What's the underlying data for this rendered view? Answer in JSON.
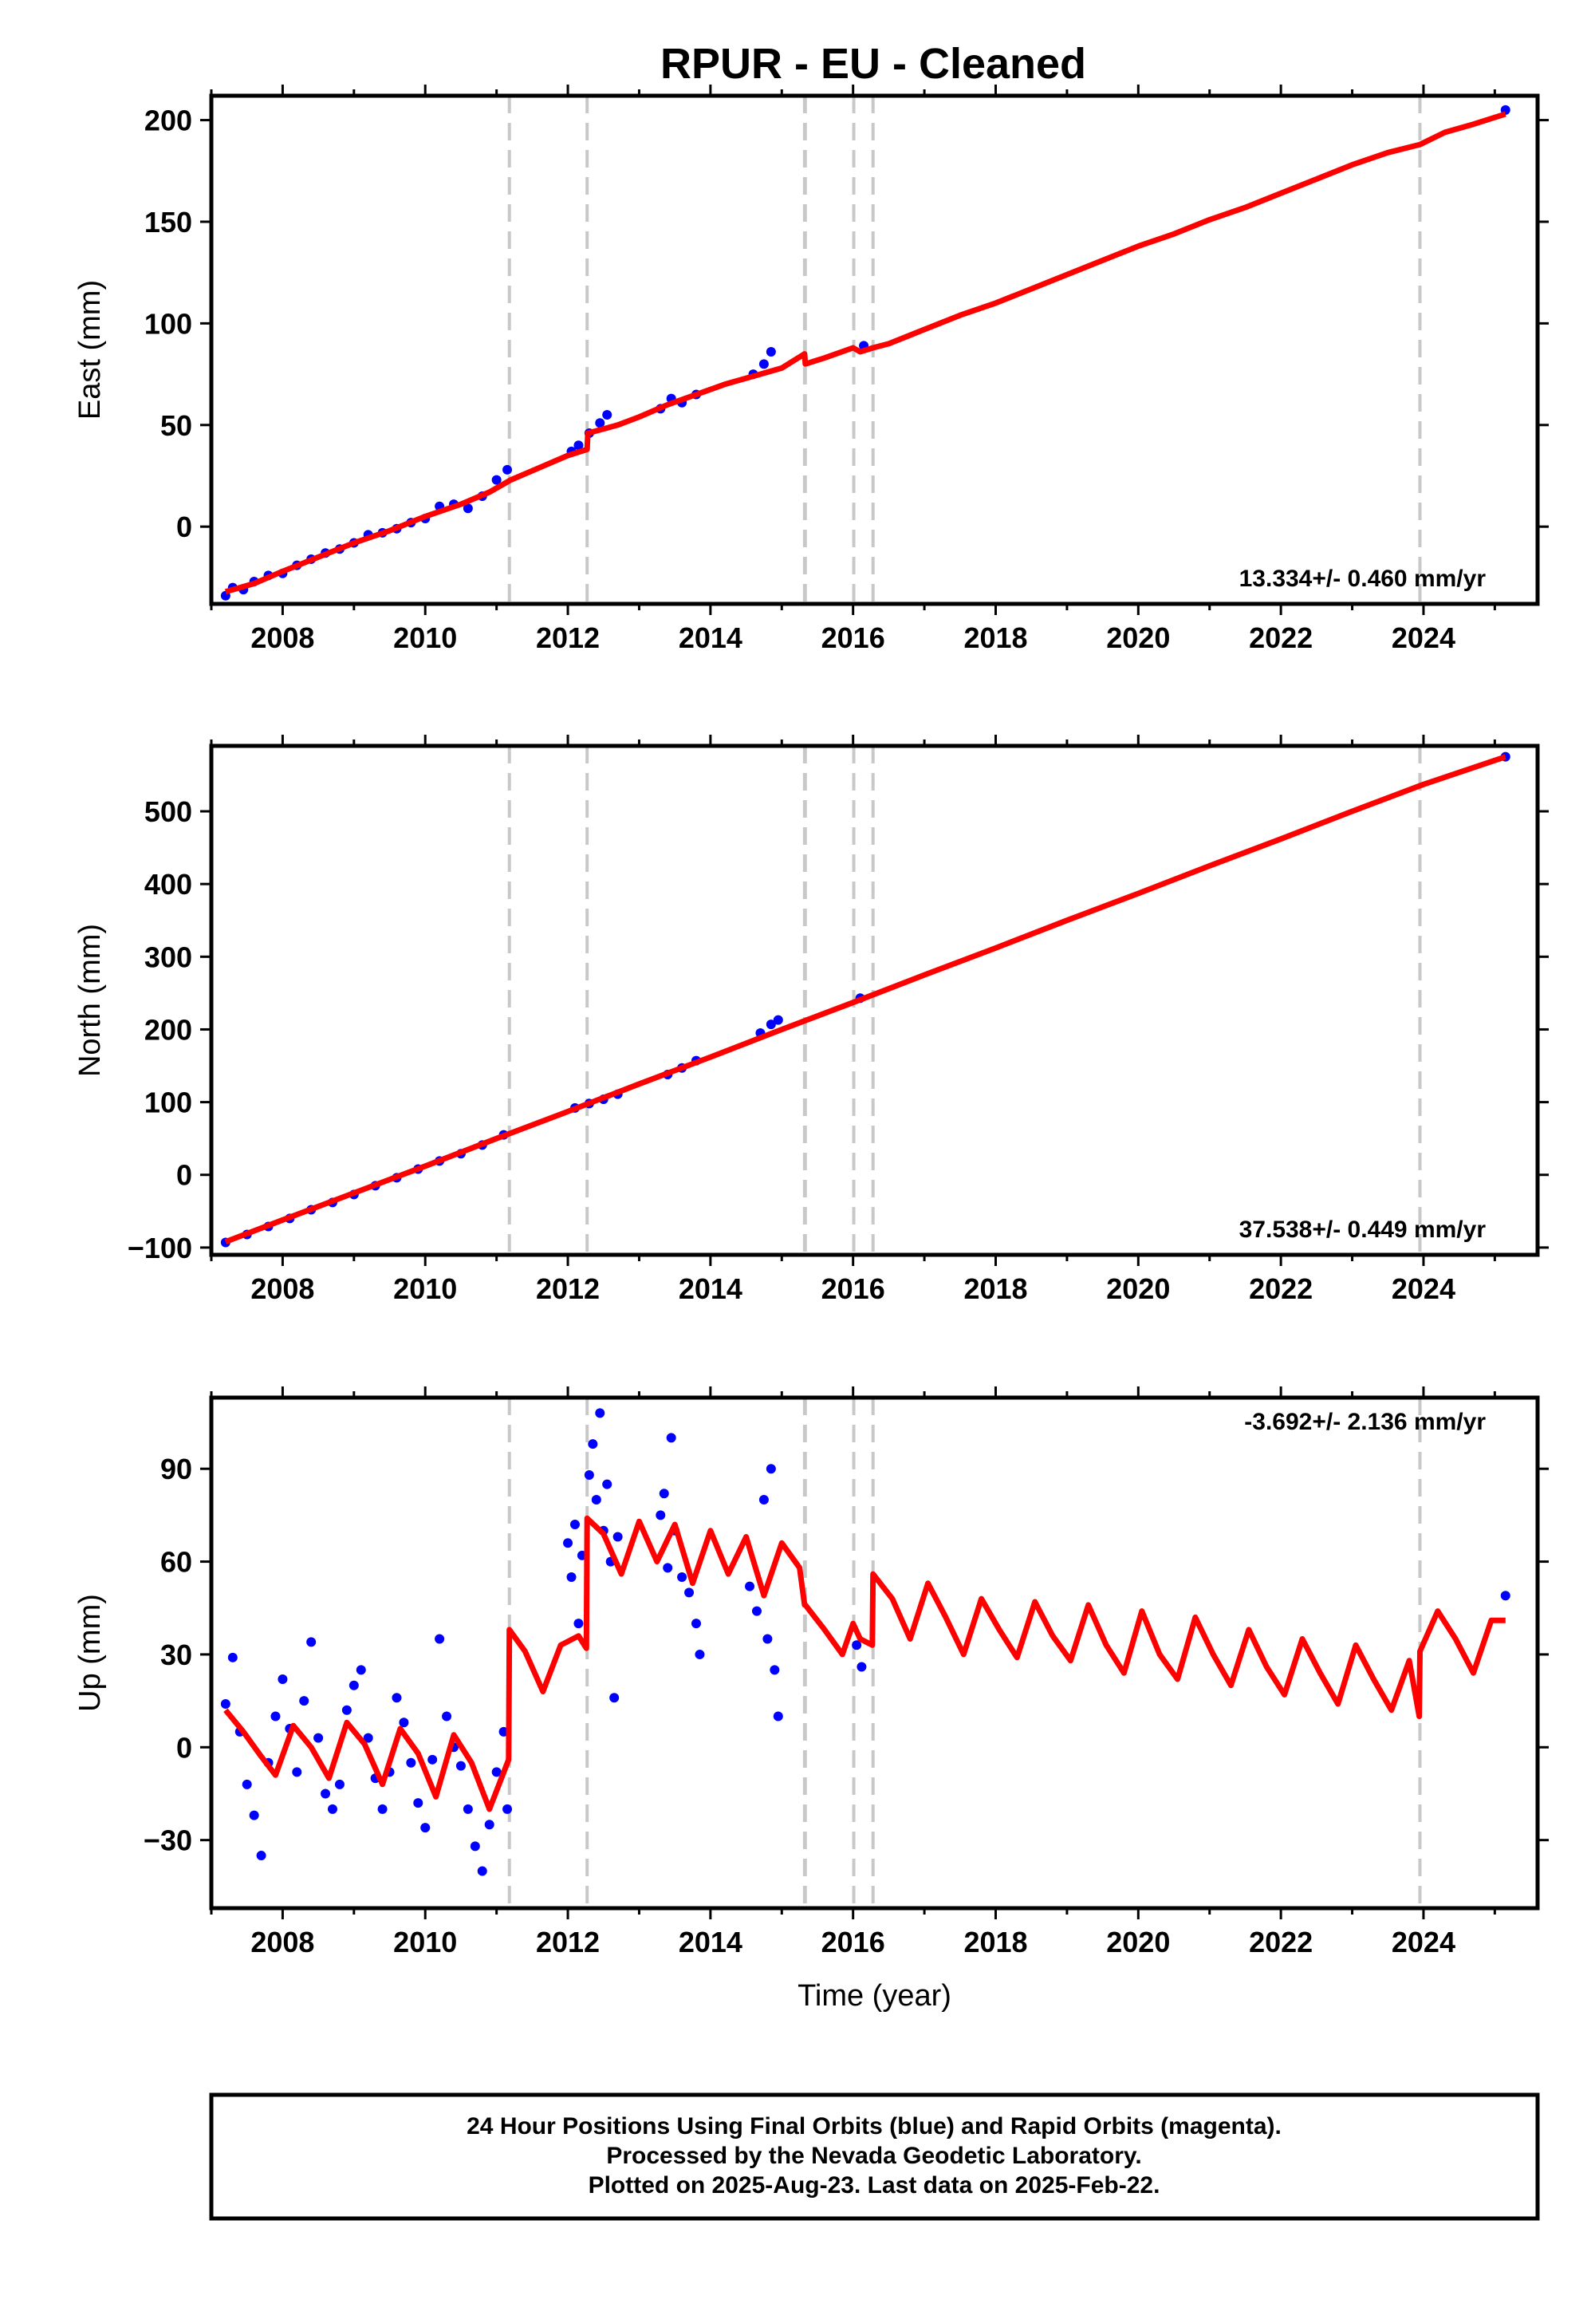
{
  "title": "RPUR  - EU - Cleaned",
  "footer": {
    "line1": "24 Hour Positions Using Final Orbits (blue) and Rapid Orbits (magenta).",
    "line2": "Processed by the Nevada Geodetic Laboratory.",
    "line3": "Plotted on 2025-Aug-23. Last data on 2025-Feb-22."
  },
  "colors": {
    "data_points": "#0000ff",
    "model": "#ff0000",
    "event_lines": "#c8c8c8"
  },
  "chart_data": [
    {
      "type": "scatter",
      "xlabel": "",
      "ylabel": "East (mm)",
      "xlim": [
        2007.0,
        2025.6
      ],
      "ylim": [
        -38,
        212
      ],
      "xticks": [
        2008,
        2010,
        2012,
        2014,
        2016,
        2018,
        2020,
        2022,
        2024
      ],
      "yticks": [
        0,
        50,
        100,
        150,
        200
      ],
      "rate": "13.334+/- 0.460 mm/yr",
      "event_lines": [
        2011.18,
        2012.27,
        2015.32,
        2015.33,
        2016.01,
        2016.28,
        2023.95
      ],
      "grid": false,
      "series": [
        {
          "x": [
            2007.2,
            2007.6,
            2008.0,
            2008.5,
            2009.0,
            2009.5,
            2010.0,
            2010.5,
            2010.9,
            2011.2,
            2011.6,
            2012.0,
            2012.27,
            2012.28,
            2012.7,
            2013.0,
            2013.4,
            2013.8,
            2014.2,
            2014.6,
            2015.0,
            2015.32,
            2015.33,
            2015.6,
            2016.0,
            2016.1,
            2016.28,
            2016.5,
            2017.0,
            2017.5,
            2018.0,
            2018.5,
            2019.0,
            2019.5,
            2020.0,
            2020.5,
            2021.0,
            2021.5,
            2022.0,
            2022.5,
            2023.0,
            2023.5,
            2023.95,
            2024.3,
            2024.7,
            2025.15
          ],
          "y": [
            -32,
            -28,
            -22,
            -15,
            -8,
            -2,
            5,
            11,
            17,
            23,
            29,
            35,
            38,
            46,
            50,
            54,
            60,
            65,
            70,
            74,
            78,
            85,
            80,
            83,
            88,
            86,
            88,
            90,
            97,
            104,
            110,
            117,
            124,
            131,
            138,
            144,
            151,
            157,
            164,
            171,
            178,
            184,
            188,
            194,
            198,
            203
          ]
        }
      ],
      "points": [
        {
          "x": 2007.2,
          "y": -34
        },
        {
          "x": 2007.3,
          "y": -30
        },
        {
          "x": 2007.45,
          "y": -31
        },
        {
          "x": 2007.6,
          "y": -27
        },
        {
          "x": 2007.8,
          "y": -24
        },
        {
          "x": 2008.0,
          "y": -23
        },
        {
          "x": 2008.2,
          "y": -19
        },
        {
          "x": 2008.4,
          "y": -16
        },
        {
          "x": 2008.6,
          "y": -13
        },
        {
          "x": 2008.8,
          "y": -11
        },
        {
          "x": 2009.0,
          "y": -8
        },
        {
          "x": 2009.2,
          "y": -4
        },
        {
          "x": 2009.4,
          "y": -3
        },
        {
          "x": 2009.6,
          "y": -1
        },
        {
          "x": 2009.8,
          "y": 2
        },
        {
          "x": 2010.0,
          "y": 4
        },
        {
          "x": 2010.2,
          "y": 10
        },
        {
          "x": 2010.4,
          "y": 11
        },
        {
          "x": 2010.6,
          "y": 9
        },
        {
          "x": 2010.8,
          "y": 15
        },
        {
          "x": 2011.0,
          "y": 23
        },
        {
          "x": 2011.15,
          "y": 28
        },
        {
          "x": 2012.05,
          "y": 37
        },
        {
          "x": 2012.15,
          "y": 40
        },
        {
          "x": 2012.3,
          "y": 46
        },
        {
          "x": 2012.45,
          "y": 51
        },
        {
          "x": 2012.55,
          "y": 55
        },
        {
          "x": 2013.3,
          "y": 58
        },
        {
          "x": 2013.45,
          "y": 63
        },
        {
          "x": 2013.6,
          "y": 61
        },
        {
          "x": 2013.8,
          "y": 65
        },
        {
          "x": 2014.6,
          "y": 75
        },
        {
          "x": 2014.75,
          "y": 80
        },
        {
          "x": 2014.85,
          "y": 86
        },
        {
          "x": 2016.15,
          "y": 89
        },
        {
          "x": 2025.15,
          "y": 205
        }
      ]
    },
    {
      "type": "scatter",
      "xlabel": "",
      "ylabel": "North (mm)",
      "xlim": [
        2007.0,
        2025.6
      ],
      "ylim": [
        -110,
        590
      ],
      "xticks": [
        2008,
        2010,
        2012,
        2014,
        2016,
        2018,
        2020,
        2022,
        2024
      ],
      "yticks": [
        -100,
        0,
        100,
        200,
        300,
        400,
        500
      ],
      "rate": "37.538+/- 0.449 mm/yr",
      "event_lines": [
        2011.18,
        2012.27,
        2015.32,
        2015.33,
        2016.01,
        2016.28,
        2023.95
      ],
      "grid": false,
      "series": [
        {
          "x": [
            2007.2,
            2008.0,
            2009.0,
            2010.0,
            2011.0,
            2012.0,
            2013.0,
            2014.0,
            2015.0,
            2016.0,
            2017.0,
            2018.0,
            2019.0,
            2020.0,
            2021.0,
            2022.0,
            2023.0,
            2024.0,
            2025.15
          ],
          "y": [
            -92,
            -62,
            -25,
            12,
            50,
            87,
            125,
            162,
            200,
            237,
            275,
            312,
            350,
            387,
            425,
            462,
            500,
            537,
            575
          ]
        }
      ],
      "points": [
        {
          "x": 2007.2,
          "y": -93
        },
        {
          "x": 2007.5,
          "y": -82
        },
        {
          "x": 2007.8,
          "y": -71
        },
        {
          "x": 2008.1,
          "y": -60
        },
        {
          "x": 2008.4,
          "y": -48
        },
        {
          "x": 2008.7,
          "y": -38
        },
        {
          "x": 2009.0,
          "y": -27
        },
        {
          "x": 2009.3,
          "y": -15
        },
        {
          "x": 2009.6,
          "y": -4
        },
        {
          "x": 2009.9,
          "y": 8
        },
        {
          "x": 2010.2,
          "y": 19
        },
        {
          "x": 2010.5,
          "y": 29
        },
        {
          "x": 2010.8,
          "y": 41
        },
        {
          "x": 2011.1,
          "y": 55
        },
        {
          "x": 2012.1,
          "y": 92
        },
        {
          "x": 2012.3,
          "y": 98
        },
        {
          "x": 2012.5,
          "y": 104
        },
        {
          "x": 2012.7,
          "y": 111
        },
        {
          "x": 2013.4,
          "y": 138
        },
        {
          "x": 2013.6,
          "y": 147
        },
        {
          "x": 2013.8,
          "y": 157
        },
        {
          "x": 2014.7,
          "y": 195
        },
        {
          "x": 2014.85,
          "y": 207
        },
        {
          "x": 2014.95,
          "y": 213
        },
        {
          "x": 2016.1,
          "y": 243
        },
        {
          "x": 2025.15,
          "y": 575
        }
      ]
    },
    {
      "type": "scatter",
      "xlabel": "Time (year)",
      "ylabel": "Up (mm)",
      "xlim": [
        2007.0,
        2025.6
      ],
      "ylim": [
        -52,
        113
      ],
      "xticks": [
        2008,
        2010,
        2012,
        2014,
        2016,
        2018,
        2020,
        2022,
        2024
      ],
      "yticks": [
        -30,
        0,
        30,
        60,
        90
      ],
      "rate": "-3.692+/- 2.136 mm/yr",
      "event_lines": [
        2011.18,
        2012.27,
        2015.32,
        2015.33,
        2016.01,
        2016.28,
        2023.95
      ],
      "grid": false,
      "series": [
        {
          "x": [
            2007.2,
            2007.45,
            2007.7,
            2007.9,
            2008.15,
            2008.4,
            2008.65,
            2008.9,
            2009.15,
            2009.4,
            2009.65,
            2009.9,
            2010.15,
            2010.4,
            2010.65,
            2010.9,
            2011.17,
            2011.18,
            2011.4,
            2011.65,
            2011.9,
            2012.15,
            2012.26,
            2012.27,
            2012.5,
            2012.75,
            2013.0,
            2013.25,
            2013.5,
            2013.75,
            2014.0,
            2014.25,
            2014.5,
            2014.75,
            2015.0,
            2015.25,
            2015.32,
            2015.33,
            2015.6,
            2015.85,
            2016.0,
            2016.1,
            2016.27,
            2016.28,
            2016.55,
            2016.8,
            2017.05,
            2017.3,
            2017.55,
            2017.8,
            2018.05,
            2018.3,
            2018.55,
            2018.8,
            2019.05,
            2019.3,
            2019.55,
            2019.8,
            2020.05,
            2020.3,
            2020.55,
            2020.8,
            2021.05,
            2021.3,
            2021.55,
            2021.8,
            2022.05,
            2022.3,
            2022.55,
            2022.8,
            2023.05,
            2023.3,
            2023.55,
            2023.8,
            2023.94,
            2023.95,
            2024.2,
            2024.45,
            2024.7,
            2024.95,
            2025.15
          ],
          "y": [
            12,
            5,
            -3,
            -9,
            7,
            0,
            -10,
            8,
            1,
            -12,
            6,
            -2,
            -16,
            4,
            -5,
            -20,
            -4,
            38,
            31,
            18,
            33,
            36,
            32,
            74,
            69,
            56,
            73,
            60,
            72,
            53,
            70,
            56,
            68,
            49,
            66,
            58,
            46,
            46,
            38,
            30,
            40,
            35,
            33,
            56,
            48,
            35,
            53,
            42,
            30,
            48,
            38,
            29,
            47,
            36,
            28,
            46,
            33,
            24,
            44,
            30,
            22,
            42,
            30,
            20,
            38,
            26,
            17,
            35,
            24,
            14,
            33,
            22,
            12,
            28,
            10,
            31,
            44,
            35,
            24,
            41,
            41
          ]
        }
      ],
      "points": [
        {
          "x": 2007.2,
          "y": 14
        },
        {
          "x": 2007.3,
          "y": 29
        },
        {
          "x": 2007.4,
          "y": 5
        },
        {
          "x": 2007.5,
          "y": -12
        },
        {
          "x": 2007.6,
          "y": -22
        },
        {
          "x": 2007.7,
          "y": -35
        },
        {
          "x": 2007.8,
          "y": -5
        },
        {
          "x": 2007.9,
          "y": 10
        },
        {
          "x": 2008.0,
          "y": 22
        },
        {
          "x": 2008.1,
          "y": 6
        },
        {
          "x": 2008.2,
          "y": -8
        },
        {
          "x": 2008.3,
          "y": 15
        },
        {
          "x": 2008.4,
          "y": 34
        },
        {
          "x": 2008.5,
          "y": 3
        },
        {
          "x": 2008.6,
          "y": -15
        },
        {
          "x": 2008.7,
          "y": -20
        },
        {
          "x": 2008.8,
          "y": -12
        },
        {
          "x": 2008.9,
          "y": 12
        },
        {
          "x": 2009.0,
          "y": 20
        },
        {
          "x": 2009.1,
          "y": 25
        },
        {
          "x": 2009.2,
          "y": 3
        },
        {
          "x": 2009.3,
          "y": -10
        },
        {
          "x": 2009.4,
          "y": -20
        },
        {
          "x": 2009.5,
          "y": -8
        },
        {
          "x": 2009.6,
          "y": 16
        },
        {
          "x": 2009.7,
          "y": 8
        },
        {
          "x": 2009.8,
          "y": -5
        },
        {
          "x": 2009.9,
          "y": -18
        },
        {
          "x": 2010.0,
          "y": -26
        },
        {
          "x": 2010.1,
          "y": -4
        },
        {
          "x": 2010.2,
          "y": 35
        },
        {
          "x": 2010.3,
          "y": 10
        },
        {
          "x": 2010.4,
          "y": 0
        },
        {
          "x": 2010.5,
          "y": -6
        },
        {
          "x": 2010.6,
          "y": -20
        },
        {
          "x": 2010.7,
          "y": -32
        },
        {
          "x": 2010.8,
          "y": -40
        },
        {
          "x": 2010.9,
          "y": -25
        },
        {
          "x": 2011.0,
          "y": -8
        },
        {
          "x": 2011.1,
          "y": 5
        },
        {
          "x": 2011.15,
          "y": -20
        },
        {
          "x": 2012.0,
          "y": 66
        },
        {
          "x": 2012.05,
          "y": 55
        },
        {
          "x": 2012.1,
          "y": 72
        },
        {
          "x": 2012.15,
          "y": 40
        },
        {
          "x": 2012.2,
          "y": 62
        },
        {
          "x": 2012.3,
          "y": 88
        },
        {
          "x": 2012.35,
          "y": 98
        },
        {
          "x": 2012.4,
          "y": 80
        },
        {
          "x": 2012.45,
          "y": 108
        },
        {
          "x": 2012.5,
          "y": 70
        },
        {
          "x": 2012.55,
          "y": 85
        },
        {
          "x": 2012.6,
          "y": 60
        },
        {
          "x": 2012.65,
          "y": 16
        },
        {
          "x": 2012.7,
          "y": 68
        },
        {
          "x": 2013.3,
          "y": 75
        },
        {
          "x": 2013.35,
          "y": 82
        },
        {
          "x": 2013.4,
          "y": 58
        },
        {
          "x": 2013.45,
          "y": 100
        },
        {
          "x": 2013.5,
          "y": 70
        },
        {
          "x": 2013.6,
          "y": 55
        },
        {
          "x": 2013.7,
          "y": 50
        },
        {
          "x": 2013.8,
          "y": 40
        },
        {
          "x": 2013.85,
          "y": 30
        },
        {
          "x": 2014.55,
          "y": 52
        },
        {
          "x": 2014.65,
          "y": 44
        },
        {
          "x": 2014.75,
          "y": 80
        },
        {
          "x": 2014.8,
          "y": 35
        },
        {
          "x": 2014.85,
          "y": 90
        },
        {
          "x": 2014.9,
          "y": 25
        },
        {
          "x": 2014.95,
          "y": 10
        },
        {
          "x": 2016.05,
          "y": 33
        },
        {
          "x": 2016.12,
          "y": 26
        },
        {
          "x": 2025.15,
          "y": 49
        }
      ]
    }
  ]
}
